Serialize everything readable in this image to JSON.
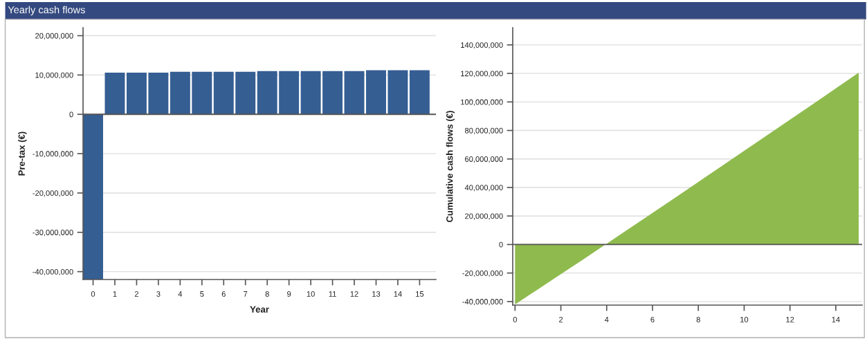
{
  "chart_data": [
    {
      "type": "bar",
      "title": "Yearly cash flows",
      "xlabel": "Year",
      "ylabel": "Pre-tax (€)",
      "categories": [
        "0",
        "1",
        "2",
        "3",
        "4",
        "5",
        "6",
        "7",
        "8",
        "9",
        "10",
        "11",
        "12",
        "13",
        "14",
        "15"
      ],
      "values": [
        -42000000,
        10600000,
        10600000,
        10600000,
        10800000,
        10800000,
        10800000,
        10800000,
        11000000,
        11000000,
        11000000,
        11000000,
        11000000,
        11200000,
        11200000,
        11200000
      ],
      "color": "#355e93",
      "ylim": [
        -42000000,
        22000000
      ],
      "yticks": [
        {
          "value": -40000000,
          "label": "-40,000,000"
        },
        {
          "value": -30000000,
          "label": "-30,000,000"
        },
        {
          "value": -20000000,
          "label": "-20,000,000"
        },
        {
          "value": -10000000,
          "label": "-10,000,000"
        },
        0,
        {
          "value": 10000000,
          "label": "10,000,000"
        },
        {
          "value": 20000000,
          "label": "20,000,000"
        }
      ],
      "grid": "y",
      "ref_lines": [
        {
          "axis": "y",
          "value": 0,
          "color": "#555555"
        }
      ]
    },
    {
      "type": "area",
      "ylabel": "Cumulative cash flows (€)",
      "x": [
        0,
        1,
        2,
        3,
        4,
        5,
        6,
        7,
        8,
        9,
        10,
        11,
        12,
        13,
        14,
        15
      ],
      "values": [
        -42000000,
        -31400000,
        -20800000,
        -10200000,
        600000,
        11400000,
        22200000,
        33000000,
        43900000,
        54800000,
        65700000,
        76600000,
        87500000,
        98500000,
        109500000,
        120500000
      ],
      "color": "#8fbb4e",
      "xlim": [
        -0.1,
        15.15
      ],
      "xticks": [
        0,
        2,
        4,
        6,
        8,
        10,
        12,
        14
      ],
      "ylim": [
        -42500000,
        152000000
      ],
      "yticks": [
        {
          "value": -40000000,
          "label": "-40,000,000"
        },
        {
          "value": -20000000,
          "label": "-20,000,000"
        },
        0,
        {
          "value": 20000000,
          "label": "20,000,000"
        },
        {
          "value": 40000000,
          "label": "40,000,000"
        },
        {
          "value": 60000000,
          "label": "60,000,000"
        },
        {
          "value": 80000000,
          "label": "80,000,000"
        },
        {
          "value": 100000000,
          "label": "100,000,000"
        },
        {
          "value": 120000000,
          "label": "120,000,000"
        },
        {
          "value": 140000000,
          "label": "140,000,000"
        }
      ],
      "grid": "y",
      "ref_lines": [
        {
          "axis": "y",
          "value": 0,
          "color": "#555555"
        }
      ]
    }
  ]
}
